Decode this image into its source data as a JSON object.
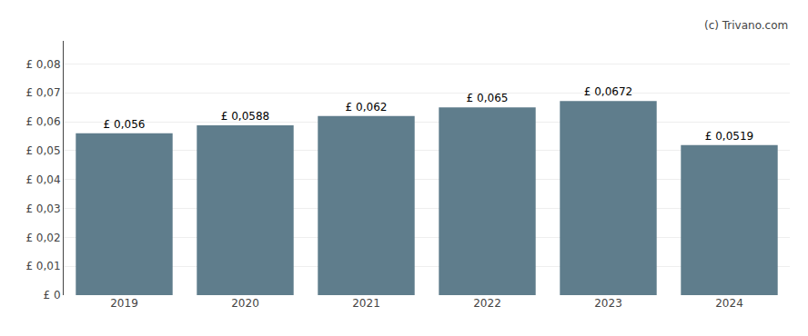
{
  "chart_data": {
    "type": "bar",
    "categories": [
      "2019",
      "2020",
      "2021",
      "2022",
      "2023",
      "2024"
    ],
    "values": [
      0.056,
      0.0588,
      0.062,
      0.065,
      0.0672,
      0.0519
    ],
    "value_labels": [
      "£ 0,056",
      "£ 0,0588",
      "£ 0,062",
      "£ 0,065",
      "£ 0,0672",
      "£ 0,0519"
    ],
    "data_labels": true,
    "color": "#5f7d8c",
    "ylim": [
      0,
      0.088
    ],
    "yticks": [
      {
        "value": 0,
        "label": "£ 0"
      },
      {
        "value": 0.01,
        "label": "£ 0,01"
      },
      {
        "value": 0.02,
        "label": "£ 0,02"
      },
      {
        "value": 0.03,
        "label": "£ 0,03"
      },
      {
        "value": 0.04,
        "label": "£ 0,04"
      },
      {
        "value": 0.05,
        "label": "£ 0,05"
      },
      {
        "value": 0.06,
        "label": "£ 0,06"
      },
      {
        "value": 0.07,
        "label": "£ 0,07"
      },
      {
        "value": 0.08,
        "label": "£ 0,08"
      }
    ],
    "grid": true,
    "annotations": [
      "(c) Trivano.com"
    ]
  }
}
